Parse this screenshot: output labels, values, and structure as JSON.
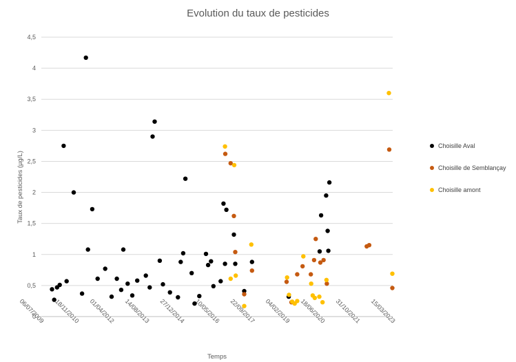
{
  "chart_data": {
    "type": "scatter",
    "title": "Evolution du taux de pesticides",
    "xlabel": "Temps",
    "ylabel": "Taux de pesticides (µg/L)",
    "x_axis_type": "date",
    "xlim": [
      "2009-07-06",
      "2023-03-15"
    ],
    "ylim": [
      0,
      4.5
    ],
    "y_ticks": [
      0,
      0.5,
      1,
      1.5,
      2,
      2.5,
      3,
      3.5,
      4,
      4.5
    ],
    "y_tick_labels": [
      "0",
      "0,5",
      "1",
      "1,5",
      "2",
      "2,5",
      "3",
      "3,5",
      "4",
      "4,5"
    ],
    "x_ticks": [
      "2009-07-06",
      "2010-11-18",
      "2012-04-01",
      "2013-08-14",
      "2014-12-27",
      "2016-05-10",
      "2017-09-22",
      "2019-02-04",
      "2020-06-18",
      "2021-10-31",
      "2023-03-15"
    ],
    "x_tick_labels": [
      "06/07/2009",
      "18/11/2010",
      "01/04/2012",
      "14/08/2013",
      "27/12/2014",
      "10/05/2016",
      "22/09/2017",
      "04/02/2019",
      "18/06/2020",
      "31/10/2021",
      "15/03/2023"
    ],
    "grid": "horizontal",
    "legend_position": "right",
    "series": [
      {
        "name": "Choisille Aval",
        "color": "#000000",
        "points": [
          {
            "x": "2009-12-05",
            "y": 0.44
          },
          {
            "x": "2010-01-05",
            "y": 0.27
          },
          {
            "x": "2010-02-15",
            "y": 0.47
          },
          {
            "x": "2010-03-25",
            "y": 0.51
          },
          {
            "x": "2010-05-20",
            "y": 2.75
          },
          {
            "x": "2010-07-01",
            "y": 0.57
          },
          {
            "x": "2010-10-10",
            "y": 2.0
          },
          {
            "x": "2011-02-05",
            "y": 0.37
          },
          {
            "x": "2011-04-01",
            "y": 4.17
          },
          {
            "x": "2011-05-01",
            "y": 1.08
          },
          {
            "x": "2011-07-01",
            "y": 1.73
          },
          {
            "x": "2011-09-15",
            "y": 0.61
          },
          {
            "x": "2012-01-01",
            "y": 0.77
          },
          {
            "x": "2012-04-01",
            "y": 0.32
          },
          {
            "x": "2012-06-15",
            "y": 0.61
          },
          {
            "x": "2012-08-15",
            "y": 0.43
          },
          {
            "x": "2012-09-15",
            "y": 1.08
          },
          {
            "x": "2012-11-15",
            "y": 0.53
          },
          {
            "x": "2013-01-20",
            "y": 0.34
          },
          {
            "x": "2013-04-01",
            "y": 0.58
          },
          {
            "x": "2013-08-01",
            "y": 0.66
          },
          {
            "x": "2013-09-25",
            "y": 0.47
          },
          {
            "x": "2013-11-05",
            "y": 2.9
          },
          {
            "x": "2013-12-05",
            "y": 3.14
          },
          {
            "x": "2014-02-15",
            "y": 0.9
          },
          {
            "x": "2014-04-01",
            "y": 0.52
          },
          {
            "x": "2014-07-10",
            "y": 0.39
          },
          {
            "x": "2014-11-01",
            "y": 0.31
          },
          {
            "x": "2014-12-10",
            "y": 0.88
          },
          {
            "x": "2015-01-15",
            "y": 1.02
          },
          {
            "x": "2015-02-15",
            "y": 2.22
          },
          {
            "x": "2015-05-15",
            "y": 0.7
          },
          {
            "x": "2015-06-25",
            "y": 0.21
          },
          {
            "x": "2015-09-01",
            "y": 0.33
          },
          {
            "x": "2015-12-05",
            "y": 1.01
          },
          {
            "x": "2016-01-05",
            "y": 0.83
          },
          {
            "x": "2016-02-15",
            "y": 0.89
          },
          {
            "x": "2016-03-20",
            "y": 0.49
          },
          {
            "x": "2016-07-01",
            "y": 0.57
          },
          {
            "x": "2016-08-10",
            "y": 1.82
          },
          {
            "x": "2016-09-01",
            "y": 0.85
          },
          {
            "x": "2016-09-20",
            "y": 1.72
          },
          {
            "x": "2017-01-05",
            "y": 1.32
          },
          {
            "x": "2017-01-25",
            "y": 0.85
          },
          {
            "x": "2017-06-01",
            "y": 0.41
          },
          {
            "x": "2017-09-20",
            "y": 0.88
          },
          {
            "x": "2019-02-25",
            "y": 0.32
          },
          {
            "x": "2020-05-10",
            "y": 1.05
          },
          {
            "x": "2020-05-30",
            "y": 1.63
          },
          {
            "x": "2020-08-10",
            "y": 1.95
          },
          {
            "x": "2020-09-01",
            "y": 1.38
          },
          {
            "x": "2020-09-10",
            "y": 1.06
          },
          {
            "x": "2020-09-25",
            "y": 2.16
          }
        ]
      },
      {
        "name": "Choisille de Semblançay",
        "color": "#c55a11",
        "points": [
          {
            "x": "2016-09-05",
            "y": 2.62
          },
          {
            "x": "2016-11-20",
            "y": 2.47
          },
          {
            "x": "2017-01-05",
            "y": 1.62
          },
          {
            "x": "2017-01-25",
            "y": 1.04
          },
          {
            "x": "2017-06-01",
            "y": 0.36
          },
          {
            "x": "2017-09-20",
            "y": 0.74
          },
          {
            "x": "2019-01-25",
            "y": 0.56
          },
          {
            "x": "2019-04-05",
            "y": 0.23
          },
          {
            "x": "2019-06-25",
            "y": 0.68
          },
          {
            "x": "2019-09-10",
            "y": 0.81
          },
          {
            "x": "2020-01-05",
            "y": 0.68
          },
          {
            "x": "2020-02-20",
            "y": 0.91
          },
          {
            "x": "2020-03-15",
            "y": 1.25
          },
          {
            "x": "2020-05-20",
            "y": 0.87
          },
          {
            "x": "2020-07-05",
            "y": 0.91
          },
          {
            "x": "2020-08-20",
            "y": 0.53
          },
          {
            "x": "2022-03-10",
            "y": 1.13
          },
          {
            "x": "2022-04-15",
            "y": 1.15
          },
          {
            "x": "2023-01-25",
            "y": 2.69
          },
          {
            "x": "2023-03-10",
            "y": 0.46
          }
        ]
      },
      {
        "name": "Choisille amont",
        "color": "#ffc000",
        "points": [
          {
            "x": "2016-09-01",
            "y": 2.74
          },
          {
            "x": "2016-11-20",
            "y": 0.61
          },
          {
            "x": "2017-01-10",
            "y": 2.44
          },
          {
            "x": "2017-02-01",
            "y": 0.66
          },
          {
            "x": "2017-06-01",
            "y": 0.17
          },
          {
            "x": "2017-09-10",
            "y": 1.16
          },
          {
            "x": "2019-02-01",
            "y": 0.63
          },
          {
            "x": "2019-03-01",
            "y": 0.35
          },
          {
            "x": "2019-04-15",
            "y": 0.24
          },
          {
            "x": "2019-05-20",
            "y": 0.21
          },
          {
            "x": "2019-06-25",
            "y": 0.25
          },
          {
            "x": "2019-09-20",
            "y": 0.97
          },
          {
            "x": "2020-01-10",
            "y": 0.53
          },
          {
            "x": "2020-02-01",
            "y": 0.34
          },
          {
            "x": "2020-03-01",
            "y": 0.3
          },
          {
            "x": "2020-05-05",
            "y": 0.32
          },
          {
            "x": "2020-06-20",
            "y": 0.23
          },
          {
            "x": "2020-08-15",
            "y": 0.59
          },
          {
            "x": "2023-01-20",
            "y": 3.6
          },
          {
            "x": "2023-03-10",
            "y": 0.69
          }
        ]
      }
    ]
  }
}
